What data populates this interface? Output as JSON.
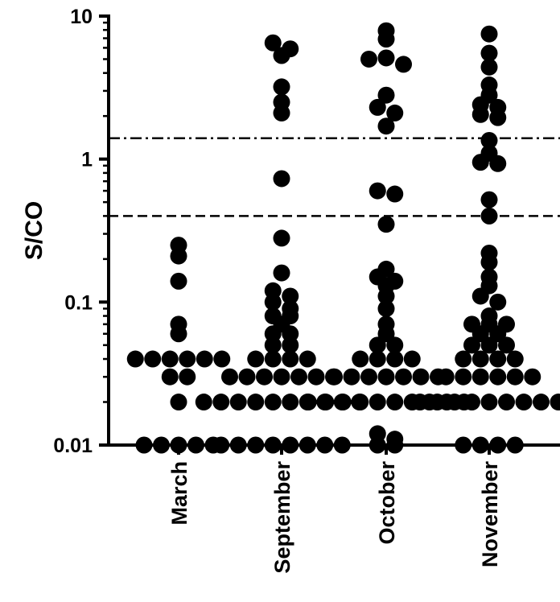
{
  "chart_data": {
    "type": "scatter",
    "ylabel": "S/CO",
    "yscale": "log",
    "ylim": [
      0.01,
      10
    ],
    "yticks": [
      {
        "value": 10,
        "label": "10"
      },
      {
        "value": 1,
        "label": "1"
      },
      {
        "value": 0.1,
        "label": "0.1"
      },
      {
        "value": 0.01,
        "label": "0.01"
      }
    ],
    "categories": [
      "March",
      "September",
      "October",
      "November"
    ],
    "reference_lines": [
      {
        "value": 1.4,
        "style": "dash-dot"
      },
      {
        "value": 0.4,
        "style": "dashed"
      }
    ],
    "series": [
      {
        "category": "March",
        "values": [
          0.25,
          0.21,
          0.14,
          0.07,
          0.06,
          0.04,
          0.04,
          0.04,
          0.04,
          0.04,
          0.04,
          0.03,
          0.03,
          0.02,
          0.01,
          0.01,
          0.01,
          0.01,
          0.01
        ]
      },
      {
        "category": "September",
        "values": [
          6.5,
          5.9,
          5.3,
          3.2,
          2.5,
          2.1,
          0.73,
          0.28,
          0.16,
          0.12,
          0.11,
          0.1,
          0.09,
          0.08,
          0.08,
          0.07,
          0.06,
          0.06,
          0.05,
          0.05,
          0.04,
          0.04,
          0.04,
          0.04,
          0.03,
          0.03,
          0.03,
          0.03,
          0.03,
          0.03,
          0.03,
          0.02,
          0.02,
          0.02,
          0.02,
          0.02,
          0.02,
          0.02,
          0.02,
          0.02,
          0.02,
          0.01,
          0.01,
          0.01,
          0.01,
          0.01,
          0.01,
          0.01,
          0.01
        ]
      },
      {
        "category": "October",
        "values": [
          7.9,
          6.9,
          5.1,
          5.0,
          4.6,
          2.8,
          2.3,
          2.1,
          1.7,
          0.6,
          0.57,
          0.35,
          0.17,
          0.15,
          0.14,
          0.13,
          0.11,
          0.09,
          0.07,
          0.06,
          0.05,
          0.05,
          0.04,
          0.04,
          0.04,
          0.04,
          0.03,
          0.03,
          0.03,
          0.03,
          0.03,
          0.03,
          0.03,
          0.02,
          0.02,
          0.02,
          0.02,
          0.02,
          0.02,
          0.02,
          0.02,
          0.02,
          0.02,
          0.012,
          0.011,
          0.01,
          0.01
        ]
      },
      {
        "category": "November",
        "values": [
          7.5,
          5.5,
          4.4,
          3.3,
          2.8,
          2.4,
          2.3,
          2.05,
          1.95,
          1.35,
          1.1,
          0.95,
          0.93,
          0.52,
          0.4,
          0.22,
          0.19,
          0.15,
          0.13,
          0.11,
          0.1,
          0.08,
          0.07,
          0.07,
          0.07,
          0.06,
          0.06,
          0.05,
          0.05,
          0.05,
          0.04,
          0.04,
          0.04,
          0.04,
          0.03,
          0.03,
          0.03,
          0.03,
          0.03,
          0.03,
          0.02,
          0.02,
          0.02,
          0.02,
          0.02,
          0.02,
          0.02,
          0.02,
          0.02,
          0.01,
          0.01,
          0.01,
          0.01
        ]
      }
    ]
  }
}
